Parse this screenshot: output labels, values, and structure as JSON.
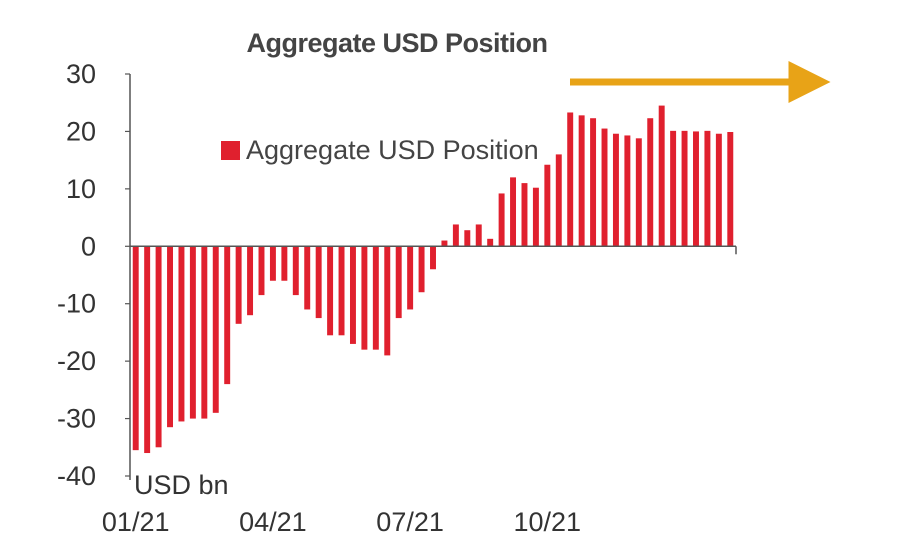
{
  "chart_data": {
    "type": "bar",
    "title": "Aggregate USD Position",
    "unit_label": "USD bn",
    "legend": {
      "label": "Aggregate USD Position",
      "placement": "upper-middle"
    },
    "ylim": [
      -40,
      30
    ],
    "yticks": [
      30,
      20,
      10,
      0,
      -10,
      -20,
      -30,
      -40
    ],
    "ytick_labels": [
      "30",
      "20",
      "10",
      "0",
      "-10",
      "-20",
      "-30",
      "-40"
    ],
    "xtick_labels": [
      "01/21",
      "04/21",
      "07/21",
      "10/21"
    ],
    "xtick_bar_index": [
      0,
      12,
      24,
      36
    ],
    "grid": false,
    "colors": {
      "bars": "#e0202e",
      "arrow": "#e8a317",
      "axis": "#555555",
      "text": "#333333"
    },
    "series": [
      {
        "name": "Aggregate USD Position",
        "values": [
          -35.5,
          -36,
          -35,
          -31.5,
          -30.5,
          -30,
          -30,
          -29,
          -24,
          -13.5,
          -12,
          -8.5,
          -6,
          -6,
          -8.5,
          -11,
          -12.5,
          -15.5,
          -15.5,
          -17,
          -18,
          -18,
          -19,
          -12.5,
          -11,
          -8,
          -4,
          1,
          3.8,
          2.8,
          3.8,
          1.3,
          9.2,
          12,
          11,
          10.2,
          14.2,
          16,
          23.3,
          22.8,
          22.3,
          20.5,
          19.6,
          19.3,
          18.8,
          22.3,
          24.5,
          20.1,
          20.1,
          20,
          20.1,
          19.6,
          19.9
        ]
      }
    ]
  }
}
